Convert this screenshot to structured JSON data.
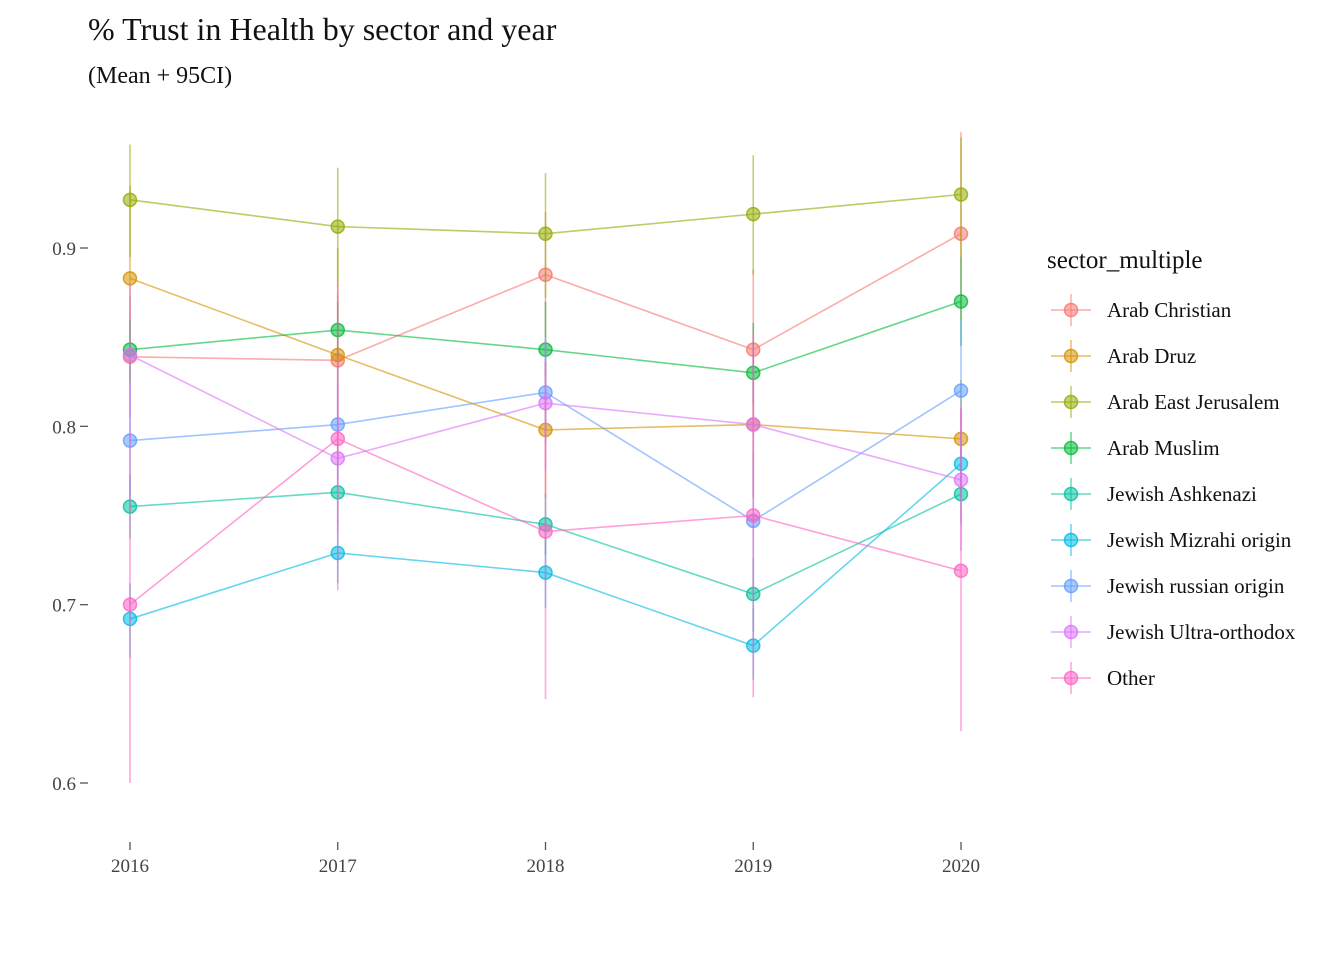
{
  "chart_data": {
    "type": "line",
    "title": "% Trust in Health by sector and year",
    "subtitle": "(Mean + 95CI)",
    "xlabel": "",
    "ylabel": "",
    "x": [
      2016,
      2017,
      2018,
      2019,
      2020
    ],
    "x_tick_labels": [
      "2016",
      "2017",
      "2018",
      "2019",
      "2020"
    ],
    "y_ticks": [
      0.6,
      0.7,
      0.8,
      0.9
    ],
    "y_tick_labels": [
      "0.6",
      "0.7",
      "0.8",
      "0.9"
    ],
    "ylim": [
      0.57,
      0.97
    ],
    "grid": false,
    "legend_title": "sector_multiple",
    "legend_position": "right",
    "series": [
      {
        "name": "Arab Christian",
        "color": "#F8766D",
        "values": [
          0.839,
          0.837,
          0.885,
          0.843,
          0.908
        ],
        "ci_low": [
          0.805,
          0.8,
          0.85,
          0.795,
          0.86
        ],
        "ci_high": [
          0.873,
          0.875,
          0.92,
          0.888,
          0.965
        ]
      },
      {
        "name": "Arab Druz",
        "color": "#D39200",
        "values": [
          0.883,
          0.84,
          0.798,
          0.801,
          0.793
        ],
        "ci_low": [
          0.84,
          0.78,
          0.76,
          0.76,
          0.76
        ],
        "ci_high": [
          0.935,
          0.9,
          0.836,
          0.84,
          0.826
        ]
      },
      {
        "name": "Arab East Jerusalem",
        "color": "#93AA00",
        "values": [
          0.927,
          0.912,
          0.908,
          0.919,
          0.93
        ],
        "ci_low": [
          0.895,
          0.878,
          0.872,
          0.885,
          0.895
        ],
        "ci_high": [
          0.958,
          0.945,
          0.942,
          0.952,
          0.962
        ]
      },
      {
        "name": "Arab Muslim",
        "color": "#00BA38",
        "values": [
          0.843,
          0.854,
          0.843,
          0.83,
          0.87
        ],
        "ci_low": [
          0.825,
          0.838,
          0.828,
          0.812,
          0.845
        ],
        "ci_high": [
          0.86,
          0.87,
          0.87,
          0.858,
          0.895
        ]
      },
      {
        "name": "Jewish Ashkenazi",
        "color": "#00C19F",
        "values": [
          0.755,
          0.763,
          0.745,
          0.706,
          0.762
        ],
        "ci_low": [
          0.737,
          0.745,
          0.728,
          0.685,
          0.745
        ],
        "ci_high": [
          0.773,
          0.78,
          0.762,
          0.726,
          0.78
        ]
      },
      {
        "name": "Jewish Mizrahi origin",
        "color": "#00B9E3",
        "values": [
          0.692,
          0.729,
          0.718,
          0.677,
          0.779
        ],
        "ci_low": [
          0.67,
          0.712,
          0.698,
          0.658,
          0.76
        ],
        "ci_high": [
          0.712,
          0.747,
          0.738,
          0.698,
          0.798
        ]
      },
      {
        "name": "Jewish russian origin",
        "color": "#619CFF",
        "values": [
          0.792,
          0.801,
          0.819,
          0.747,
          0.82
        ],
        "ci_low": [
          0.76,
          0.77,
          0.79,
          0.71,
          0.78
        ],
        "ci_high": [
          0.825,
          0.835,
          0.848,
          0.785,
          0.86
        ]
      },
      {
        "name": "Jewish Ultra-orthodox",
        "color": "#DB72FB",
        "values": [
          0.84,
          0.782,
          0.813,
          0.801,
          0.77
        ],
        "ci_low": [
          0.8,
          0.74,
          0.775,
          0.76,
          0.73
        ],
        "ci_high": [
          0.88,
          0.825,
          0.85,
          0.845,
          0.81
        ]
      },
      {
        "name": "Other",
        "color": "#FF61C3",
        "values": [
          0.7,
          0.793,
          0.741,
          0.75,
          0.719
        ],
        "ci_low": [
          0.6,
          0.708,
          0.647,
          0.648,
          0.629
        ],
        "ci_high": [
          0.8,
          0.88,
          0.836,
          0.852,
          0.81
        ]
      }
    ]
  }
}
